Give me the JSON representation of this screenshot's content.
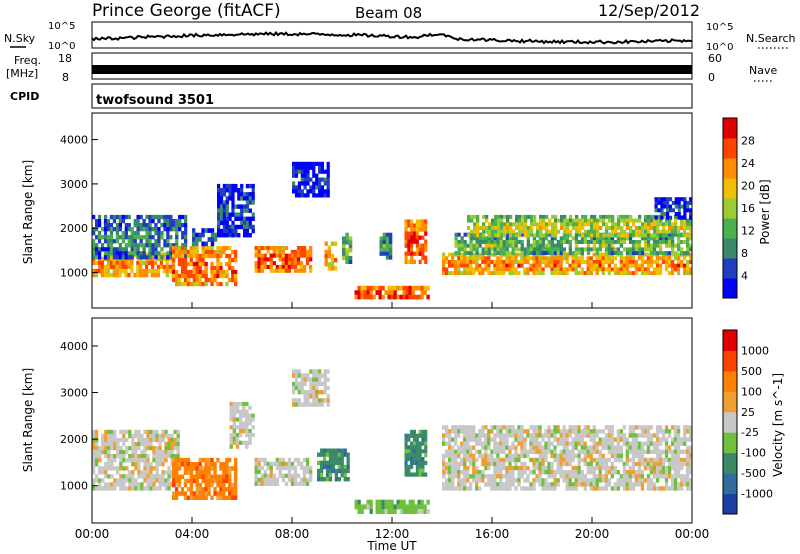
{
  "header": {
    "station": "Prince George (fitACF)",
    "beam": "Beam 08",
    "date": "12/Sep/2012"
  },
  "top_panels": {
    "nsky_label": "N.Sky",
    "nsky_ticks": [
      "10^5",
      "10^0"
    ],
    "nsearch_label": "N.Search",
    "nsearch_ticks": [
      "10^5",
      "10^0"
    ],
    "freq_label_1": "Freq.",
    "freq_label_2": "[MHz]",
    "freq_ticks": [
      "18",
      "8"
    ],
    "nave_label": "Nave",
    "nave_ticks": [
      "60",
      "0"
    ],
    "cpid_label": "CPID",
    "cpid_value": "twofsound 3501"
  },
  "colors": {
    "power_scale": [
      "#0000ff",
      "#1f3fbf",
      "#3a8a6a",
      "#4caf50",
      "#9ccc30",
      "#f0c000",
      "#ff8c00",
      "#ff4500",
      "#e00000"
    ],
    "velocity_scale": [
      "#1c3fa8",
      "#2e6e9e",
      "#3a8a6a",
      "#70c040",
      "#c8c8c8",
      "#f0a030",
      "#ff8000",
      "#ff4000",
      "#e00000"
    ],
    "ground_scatter": "#c0c0c0"
  },
  "chart_data": [
    {
      "type": "heatmap",
      "panel": "power",
      "ylabel": "Slant Range [km]",
      "y_ticks": [
        "1000",
        "2000",
        "3000",
        "4000"
      ],
      "ylim": [
        200,
        4600
      ],
      "xlim": [
        0,
        24
      ],
      "x_ticks": [
        "00:00",
        "04:00",
        "08:00",
        "12:00",
        "16:00",
        "20:00",
        "00:00"
      ],
      "colorbar_label": "Power [dB]",
      "colorbar_ticks": [
        "28",
        "24",
        "20",
        "16",
        "12",
        "8",
        "4"
      ],
      "colorbar_range": [
        0,
        32
      ],
      "regions": [
        {
          "t0": 0.0,
          "t1": 3.3,
          "r0": 900,
          "r1": 1450,
          "level": 24
        },
        {
          "t0": 0.0,
          "t1": 3.8,
          "r0": 1300,
          "r1": 2300,
          "level": 10
        },
        {
          "t0": 3.2,
          "t1": 5.8,
          "r0": 700,
          "r1": 1600,
          "level": 26
        },
        {
          "t0": 4.0,
          "t1": 5.0,
          "r0": 1600,
          "r1": 2000,
          "level": 8
        },
        {
          "t0": 5.0,
          "t1": 6.5,
          "r0": 1800,
          "r1": 3000,
          "level": 6
        },
        {
          "t0": 6.5,
          "t1": 8.8,
          "r0": 1000,
          "r1": 1600,
          "level": 27
        },
        {
          "t0": 8.0,
          "t1": 9.5,
          "r0": 2700,
          "r1": 3500,
          "level": 5
        },
        {
          "t0": 9.3,
          "t1": 9.8,
          "r0": 1050,
          "r1": 1700,
          "level": 22
        },
        {
          "t0": 10.0,
          "t1": 10.4,
          "r0": 1200,
          "r1": 1900,
          "level": 14
        },
        {
          "t0": 10.5,
          "t1": 13.5,
          "r0": 400,
          "r1": 700,
          "level": 29
        },
        {
          "t0": 11.5,
          "t1": 12.0,
          "r0": 1300,
          "r1": 1900,
          "level": 12
        },
        {
          "t0": 12.5,
          "t1": 13.4,
          "r0": 1200,
          "r1": 2200,
          "level": 27
        },
        {
          "t0": 14.0,
          "t1": 24.0,
          "r0": 950,
          "r1": 1450,
          "level": 24
        },
        {
          "t0": 14.5,
          "t1": 24.0,
          "r0": 1400,
          "r1": 1900,
          "level": 14
        },
        {
          "t0": 15.0,
          "t1": 24.0,
          "r0": 1800,
          "r1": 2300,
          "level": 18
        },
        {
          "t0": 22.5,
          "t1": 24.0,
          "r0": 2200,
          "r1": 2700,
          "level": 6
        }
      ]
    },
    {
      "type": "heatmap",
      "panel": "velocity",
      "ylabel": "Slant Range [km]",
      "y_ticks": [
        "1000",
        "2000",
        "3000",
        "4000"
      ],
      "ylim": [
        200,
        4600
      ],
      "xlim": [
        0,
        24
      ],
      "x_ticks": [
        "00:00",
        "04:00",
        "08:00",
        "12:00",
        "16:00",
        "20:00",
        "00:00"
      ],
      "xlabel": "Time UT",
      "colorbar_label": "Velocity [m s^-1]",
      "colorbar_ticks": [
        "1000",
        "500",
        "100",
        "25",
        "-25",
        "-100",
        "-500",
        "-1000"
      ],
      "regions": [
        {
          "t0": 0.0,
          "t1": 3.5,
          "r0": 900,
          "r1": 2200,
          "class": 4
        },
        {
          "t0": 3.2,
          "t1": 5.8,
          "r0": 700,
          "r1": 1600,
          "class": 6
        },
        {
          "t0": 5.5,
          "t1": 6.5,
          "r0": 1800,
          "r1": 2800,
          "class": 4
        },
        {
          "t0": 6.5,
          "t1": 8.8,
          "r0": 1000,
          "r1": 1600,
          "class": 4
        },
        {
          "t0": 8.0,
          "t1": 9.5,
          "r0": 2700,
          "r1": 3500,
          "class": 4
        },
        {
          "t0": 9.0,
          "t1": 10.3,
          "r0": 1100,
          "r1": 1800,
          "class": 2
        },
        {
          "t0": 10.5,
          "t1": 13.5,
          "r0": 400,
          "r1": 700,
          "class": 3
        },
        {
          "t0": 12.5,
          "t1": 13.4,
          "r0": 1200,
          "r1": 2200,
          "class": 2
        },
        {
          "t0": 14.0,
          "t1": 24.0,
          "r0": 900,
          "r1": 2300,
          "class": 4
        }
      ]
    }
  ]
}
